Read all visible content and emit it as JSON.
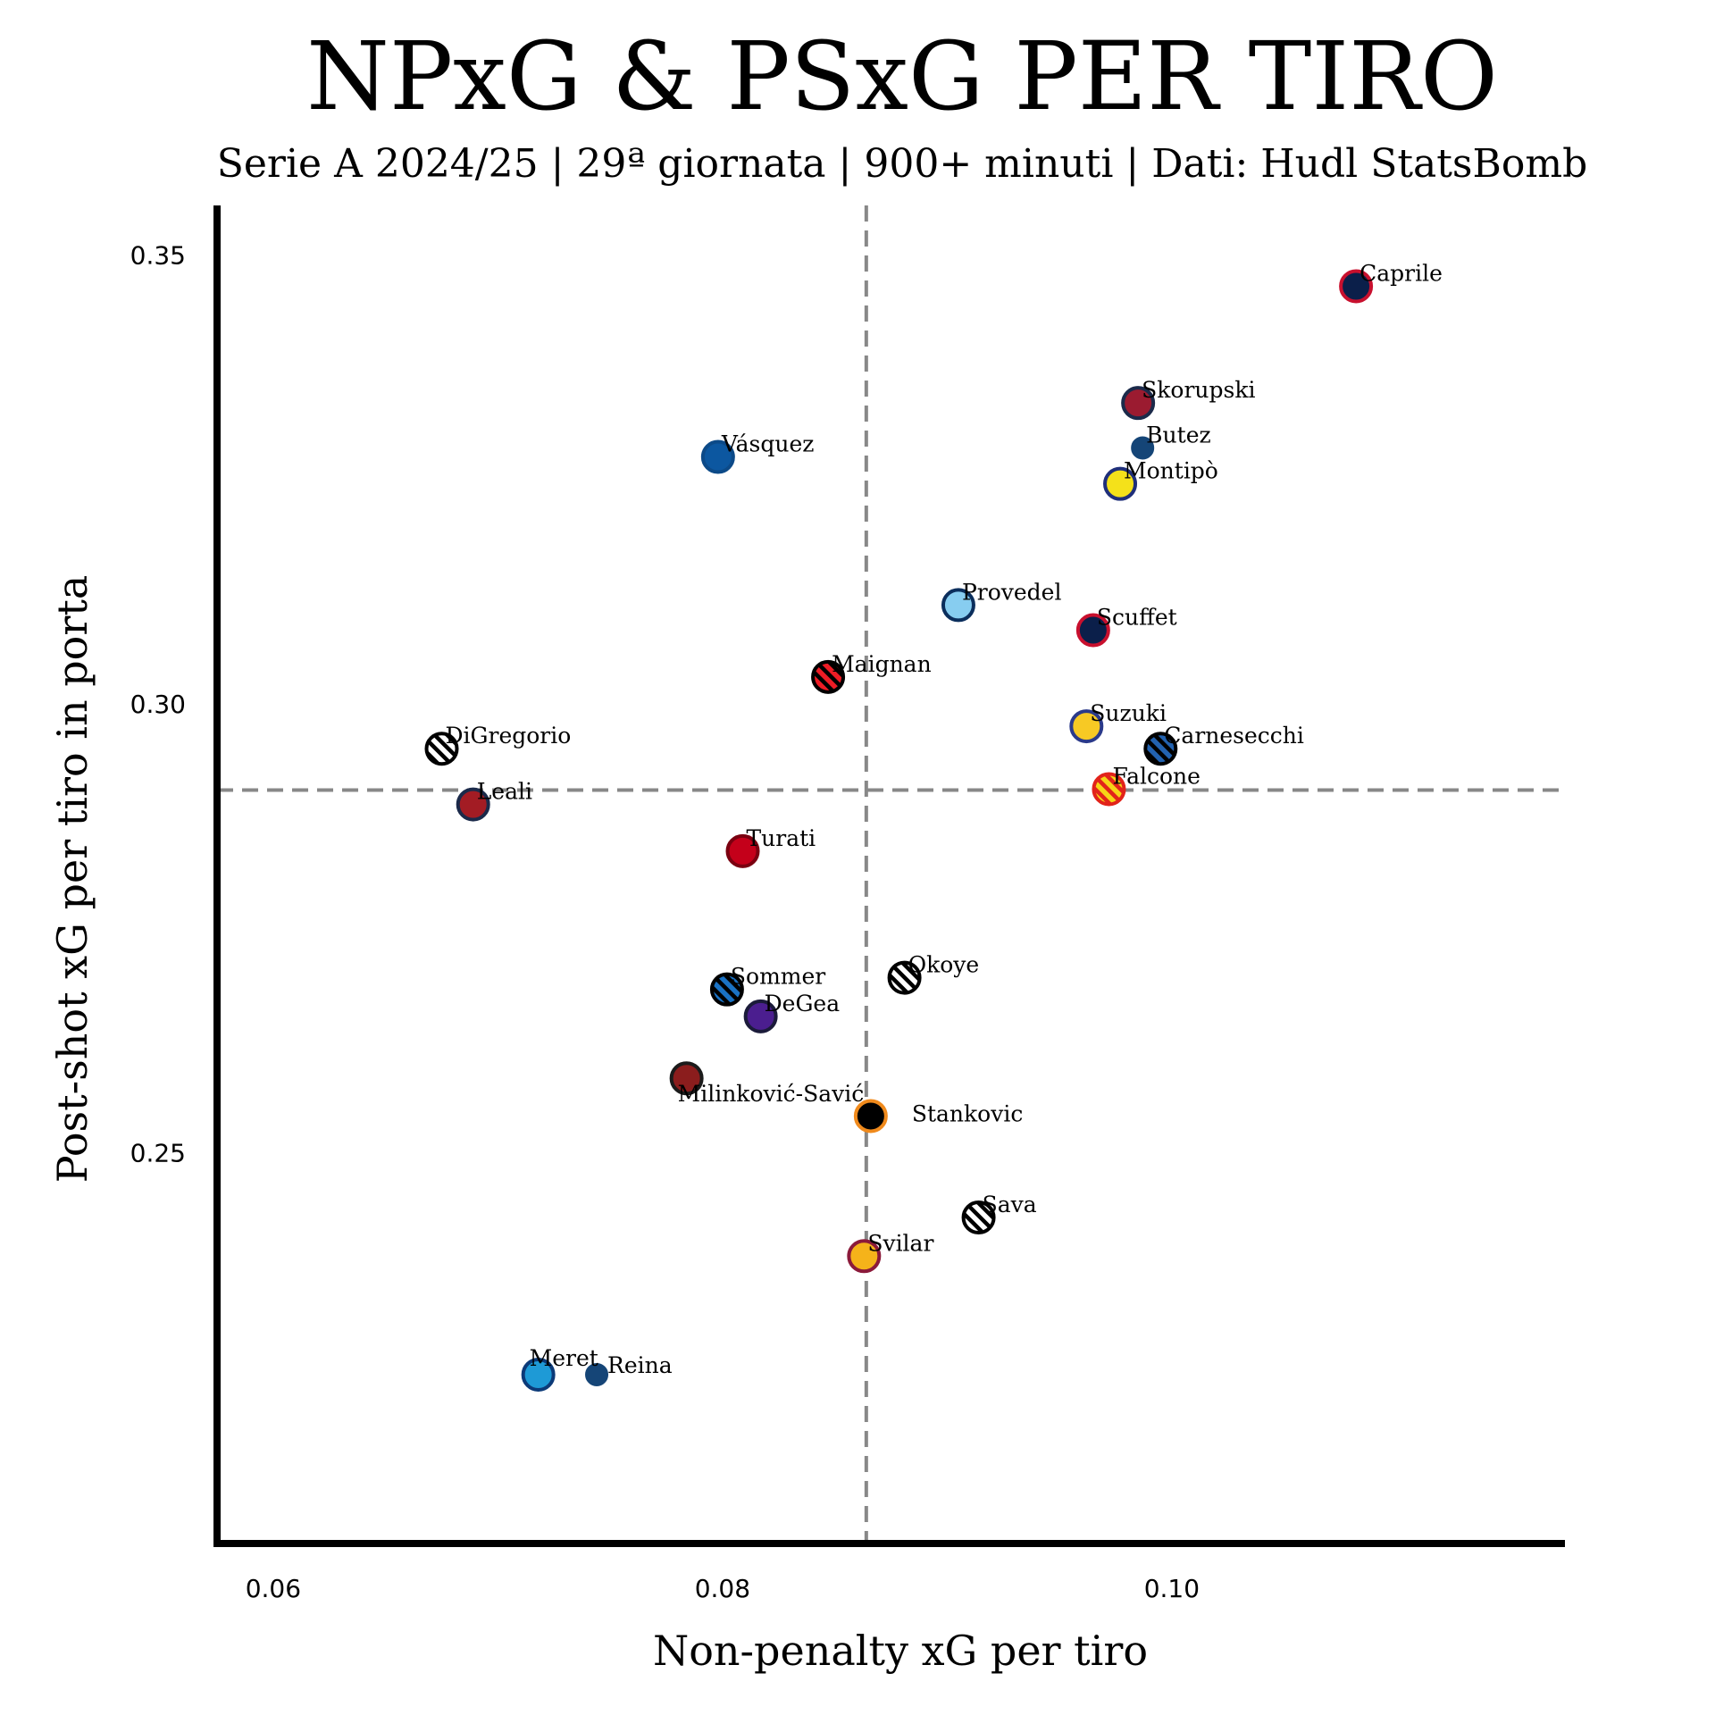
{
  "chart_data": {
    "type": "scatter",
    "title": "NPxG & PSxG PER TIRO",
    "subtitle": "Serie A 2024/25 | 29ª giornata | 900+ minuti | Dati: Hudl StatsBomb",
    "xlabel": "Non-penalty xG per tiro",
    "ylabel": "Post-shot xG per tiro in porta",
    "xlim": [
      0.0575,
      0.1175
    ],
    "ylim": [
      0.2065,
      0.3555
    ],
    "xticks": [
      0.06,
      0.08,
      0.1
    ],
    "xtick_labels": [
      "0.06",
      "0.08",
      "0.10"
    ],
    "yticks": [
      0.25,
      0.3,
      0.35
    ],
    "ytick_labels": [
      "0.25",
      "0.30",
      "0.35"
    ],
    "grid": false,
    "reference_lines": {
      "x": 0.0864,
      "y": 0.2904,
      "style": "dashed",
      "color": "#888888"
    },
    "points": [
      {
        "name": "Caprile",
        "x": 0.1082,
        "y": 0.3465,
        "fill": "#0b1f4a",
        "edge": "#c8102e",
        "pattern": "solid",
        "size": "large"
      },
      {
        "name": "Skorupski",
        "x": 0.0985,
        "y": 0.3335,
        "fill": "#9b1b30",
        "edge": "#1b2a4a",
        "pattern": "solid",
        "size": "large"
      },
      {
        "name": "Butez",
        "x": 0.0987,
        "y": 0.3285,
        "fill": "#154577",
        "edge": "#154577",
        "pattern": "solid",
        "size": "small"
      },
      {
        "name": "Montipò",
        "x": 0.0977,
        "y": 0.3245,
        "fill": "#f4e11a",
        "edge": "#1f2f7a",
        "pattern": "solid",
        "size": "large"
      },
      {
        "name": "Vásquez",
        "x": 0.0798,
        "y": 0.3275,
        "fill": "#0c57a0",
        "edge": "#0c4a88",
        "pattern": "solid",
        "size": "large"
      },
      {
        "name": "Provedel",
        "x": 0.0905,
        "y": 0.311,
        "fill": "#87cdf0",
        "edge": "#0b2e5c",
        "pattern": "solid",
        "size": "large"
      },
      {
        "name": "Scuffet",
        "x": 0.0965,
        "y": 0.3082,
        "fill": "#0b1f4a",
        "edge": "#c8102e",
        "pattern": "solid",
        "size": "large"
      },
      {
        "name": "Maignan",
        "x": 0.0847,
        "y": 0.303,
        "fill": "#ee1c25",
        "edge": "#000000",
        "pattern": "stripes",
        "size": "large"
      },
      {
        "name": "Suzuki",
        "x": 0.0962,
        "y": 0.2975,
        "fill": "#f7c924",
        "edge": "#2b3a8a",
        "pattern": "solid",
        "size": "large"
      },
      {
        "name": "Carnesecchi",
        "x": 0.0995,
        "y": 0.295,
        "fill": "#2262b0",
        "edge": "#000000",
        "pattern": "stripes",
        "size": "large"
      },
      {
        "name": "DiGregorio",
        "x": 0.0675,
        "y": 0.295,
        "fill": "#ffffff",
        "edge": "#000000",
        "pattern": "stripes",
        "size": "large"
      },
      {
        "name": "Falcone",
        "x": 0.0972,
        "y": 0.2905,
        "fill": "#f7d417",
        "edge": "#e2231a",
        "pattern": "stripes",
        "size": "large"
      },
      {
        "name": "Leali",
        "x": 0.0689,
        "y": 0.2888,
        "fill": "#a31c24",
        "edge": "#1b2a4a",
        "pattern": "solid",
        "size": "large"
      },
      {
        "name": "Turati",
        "x": 0.0809,
        "y": 0.2836,
        "fill": "#c4001a",
        "edge": "#7a0010",
        "pattern": "solid",
        "size": "large"
      },
      {
        "name": "Okoye",
        "x": 0.0881,
        "y": 0.2695,
        "fill": "#ffffff",
        "edge": "#000000",
        "pattern": "stripes",
        "size": "large"
      },
      {
        "name": "Sommer",
        "x": 0.0802,
        "y": 0.2682,
        "fill": "#1a72c4",
        "edge": "#000000",
        "pattern": "stripes",
        "size": "large"
      },
      {
        "name": "DeGea",
        "x": 0.0817,
        "y": 0.2652,
        "fill": "#4b1e8f",
        "edge": "#1b1b3a",
        "pattern": "solid",
        "size": "large"
      },
      {
        "name": "Milinković-Savić",
        "x": 0.0784,
        "y": 0.2583,
        "fill": "#8b1d1d",
        "edge": "#1b1b1b",
        "pattern": "solid",
        "size": "large"
      },
      {
        "name": "Stankovic",
        "x": 0.0866,
        "y": 0.2541,
        "fill": "#000000",
        "edge": "#f08a1c",
        "pattern": "solid",
        "size": "large"
      },
      {
        "name": "Sava",
        "x": 0.0914,
        "y": 0.2428,
        "fill": "#ffffff",
        "edge": "#000000",
        "pattern": "stripes",
        "size": "large"
      },
      {
        "name": "Svilar",
        "x": 0.0863,
        "y": 0.2385,
        "fill": "#f5b31a",
        "edge": "#8b1a3a",
        "pattern": "solid",
        "size": "large"
      },
      {
        "name": "Meret",
        "x": 0.0718,
        "y": 0.2253,
        "fill": "#1e9ad6",
        "edge": "#0c3a78",
        "pattern": "solid",
        "size": "large"
      },
      {
        "name": "Reina",
        "x": 0.0744,
        "y": 0.2253,
        "fill": "#154577",
        "edge": "#154577",
        "pattern": "solid",
        "size": "small"
      }
    ]
  }
}
